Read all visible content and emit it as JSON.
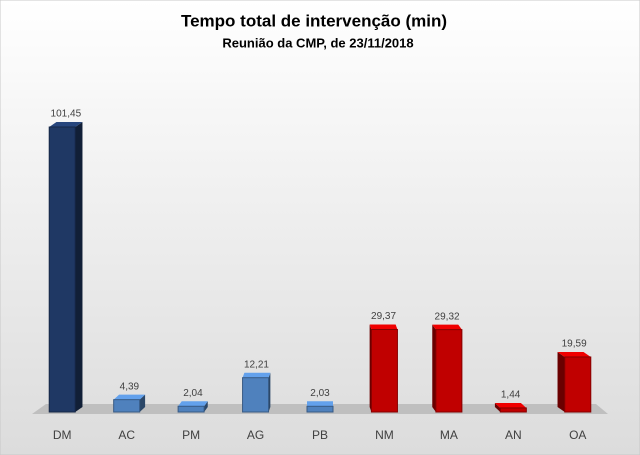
{
  "chart_data": {
    "type": "bar3d",
    "title": "Tempo total de intervenção (min)",
    "subtitle": "Reunião da CMP, de 23/11/2018",
    "categories": [
      "DM",
      "AC",
      "PM",
      "AG",
      "PB",
      "NM",
      "MA",
      "AN",
      "OA"
    ],
    "values": [
      101.45,
      4.39,
      2.04,
      12.21,
      2.03,
      29.37,
      29.32,
      1.44,
      19.59
    ],
    "value_labels": [
      "101,45",
      "4,39",
      "2,04",
      "12,21",
      "2,03",
      "29,37",
      "29,32",
      "1,44",
      "19,59"
    ],
    "colors": [
      "#1f3864",
      "#4f81bd",
      "#4f81bd",
      "#4f81bd",
      "#4f81bd",
      "#c00000",
      "#c00000",
      "#c00000",
      "#c00000"
    ]
  }
}
